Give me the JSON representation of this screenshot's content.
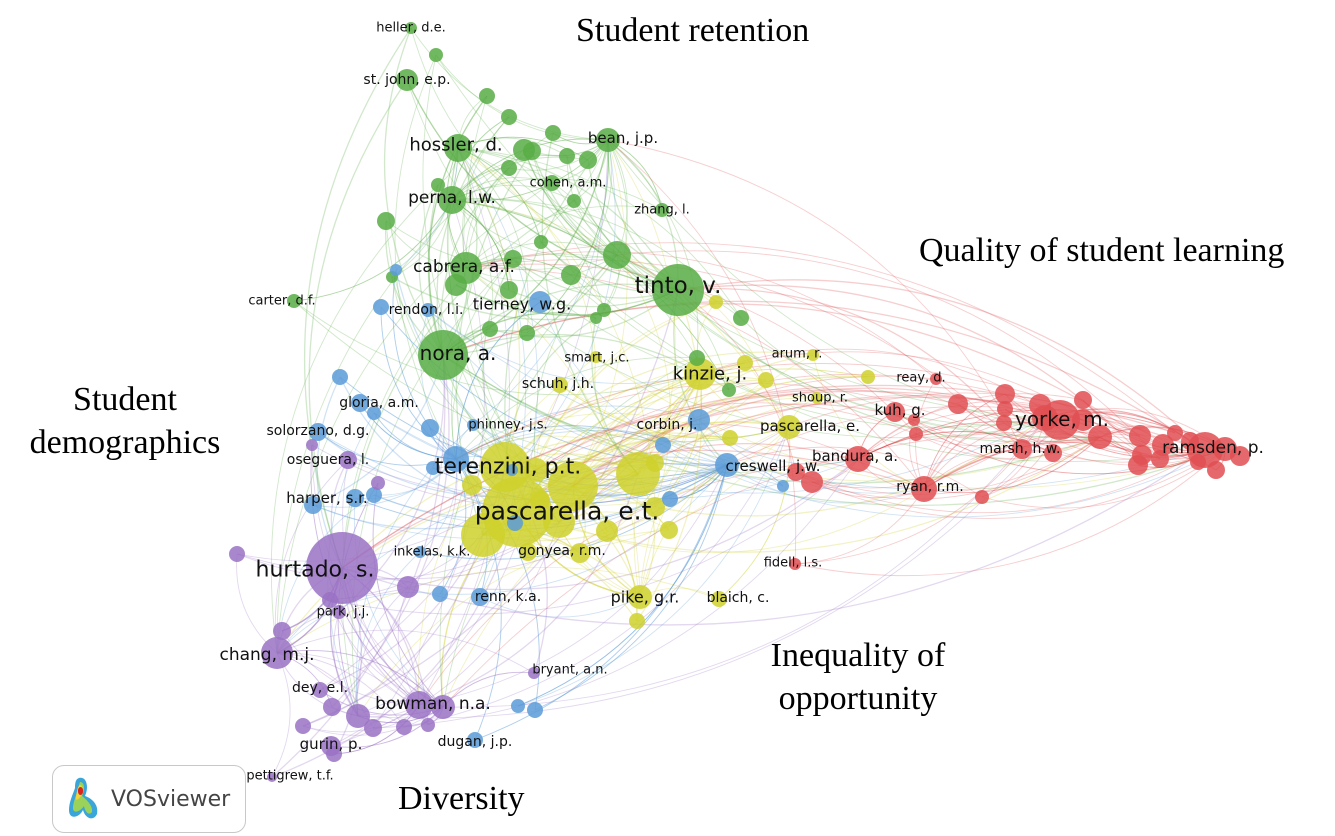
{
  "cluster_titles": {
    "retention": "Student retention",
    "quality": "Quality of student learning",
    "demographics_1": "Student",
    "demographics_2": "demographics",
    "inequality_1": "Inequality of",
    "inequality_2": "opportunity",
    "diversity": "Diversity"
  },
  "clusters": {
    "green": "#58ad45",
    "blue": "#5b9bd8",
    "yellow": "#cfd12c",
    "red": "#e04f52",
    "purple": "#9a72c4"
  },
  "nodes": [
    {
      "label": "heller, d.e.",
      "cluster": "green"
    },
    {
      "label": "st. john, e.p.",
      "cluster": "green"
    },
    {
      "label": "hossler, d.",
      "cluster": "green"
    },
    {
      "label": "bean, j.p.",
      "cluster": "green"
    },
    {
      "label": "cohen, a.m.",
      "cluster": "green"
    },
    {
      "label": "perna, l.w.",
      "cluster": "green"
    },
    {
      "label": "zhang, l.",
      "cluster": "green"
    },
    {
      "label": "cabrera, a.f.",
      "cluster": "green"
    },
    {
      "label": "carter, d.f.",
      "cluster": "green"
    },
    {
      "label": "tinto, v.",
      "cluster": "green"
    },
    {
      "label": "nora, a.",
      "cluster": "green"
    },
    {
      "label": "rendon, l.i.",
      "cluster": "blue"
    },
    {
      "label": "tierney, w.g.",
      "cluster": "blue"
    },
    {
      "label": "gloria, a.m.",
      "cluster": "blue"
    },
    {
      "label": "solorzano, d.g.",
      "cluster": "blue"
    },
    {
      "label": "phinney, j.s.",
      "cluster": "blue"
    },
    {
      "label": "corbin, j.",
      "cluster": "blue"
    },
    {
      "label": "creswell, j.w.",
      "cluster": "blue"
    },
    {
      "label": "harper, s.r.",
      "cluster": "blue"
    },
    {
      "label": "inkelas, k.k.",
      "cluster": "blue"
    },
    {
      "label": "renn, k.a.",
      "cluster": "blue"
    },
    {
      "label": "dugan, j.p.",
      "cluster": "blue"
    },
    {
      "label": "smart, j.c.",
      "cluster": "yellow"
    },
    {
      "label": "schuh, j.h.",
      "cluster": "yellow"
    },
    {
      "label": "kinzie, j.",
      "cluster": "yellow"
    },
    {
      "label": "arum, r.",
      "cluster": "yellow"
    },
    {
      "label": "shoup, r.",
      "cluster": "yellow"
    },
    {
      "label": "pascarella, e.",
      "cluster": "yellow"
    },
    {
      "label": "terenzini, p.t.",
      "cluster": "yellow"
    },
    {
      "label": "pascarella, e.t.",
      "cluster": "yellow"
    },
    {
      "label": "gonyea, r.m.",
      "cluster": "yellow"
    },
    {
      "label": "pike, g.r.",
      "cluster": "yellow"
    },
    {
      "label": "blaich, c.",
      "cluster": "yellow"
    },
    {
      "label": "reay, d.",
      "cluster": "red"
    },
    {
      "label": "kuh, g.",
      "cluster": "red"
    },
    {
      "label": "bandura, a.",
      "cluster": "red"
    },
    {
      "label": "ryan, r.m.",
      "cluster": "red"
    },
    {
      "label": "yorke, m.",
      "cluster": "red"
    },
    {
      "label": "marsh, h.w.",
      "cluster": "red"
    },
    {
      "label": "ramsden, p.",
      "cluster": "red"
    },
    {
      "label": "fidell, l.s.",
      "cluster": "red"
    },
    {
      "label": "oseguera, l.",
      "cluster": "purple"
    },
    {
      "label": "hurtado, s.",
      "cluster": "purple"
    },
    {
      "label": "park, j.j.",
      "cluster": "purple"
    },
    {
      "label": "chang, m.j.",
      "cluster": "purple"
    },
    {
      "label": "dey, e.l.",
      "cluster": "purple"
    },
    {
      "label": "bowman, n.a.",
      "cluster": "purple"
    },
    {
      "label": "bryant, a.n.",
      "cluster": "purple"
    },
    {
      "label": "gurin, p.",
      "cluster": "purple"
    },
    {
      "label": "pettigrew, t.f.",
      "cluster": "purple"
    }
  ],
  "logo": {
    "text": "VOSviewer"
  }
}
